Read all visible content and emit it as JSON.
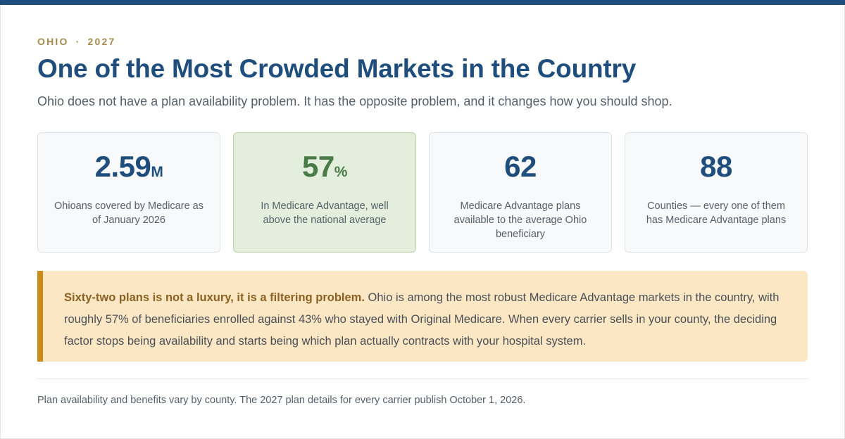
{
  "header": {
    "state": "OHIO",
    "separator": "·",
    "year": "2027",
    "title": "One of the Most Crowded Markets in the Country",
    "subtitle": "Ohio does not have a plan availability problem. It has the opposite problem, and it changes how you should shop."
  },
  "stats": [
    {
      "value": "2.59",
      "unit": "M",
      "label": "Ohioans covered by Medicare as of January 2026"
    },
    {
      "value": "57",
      "unit": "%",
      "label": "In Medicare Advantage, well above the national average"
    },
    {
      "value": "62",
      "unit": "",
      "label": "Medicare Advantage plans available to the average Ohio beneficiary"
    },
    {
      "value": "88",
      "unit": "",
      "label": "Counties — every one of them has Medicare Advantage plans"
    }
  ],
  "callout": {
    "lead": "Sixty-two plans is not a luxury, it is a filtering problem.",
    "body": " Ohio is among the most robust Medicare Advantage markets in the country, with roughly 57% of beneficiaries enrolled against 43% who stayed with Original Medicare. When every carrier sells in your county, the deciding factor stops being availability and starts being which plan actually contracts with your hospital system."
  },
  "footnote": "Plan availability and benefits vary by county. The 2027 plan details for every carrier publish October 1, 2026.",
  "colors": {
    "brand_blue": "#1f4e7d",
    "eyebrow_gold": "#a68a4d",
    "highlight_green": "#4a7a46",
    "highlight_card_bg": "#e3efdc",
    "callout_bg": "#fbe7c3",
    "callout_accent": "#c98a18"
  }
}
